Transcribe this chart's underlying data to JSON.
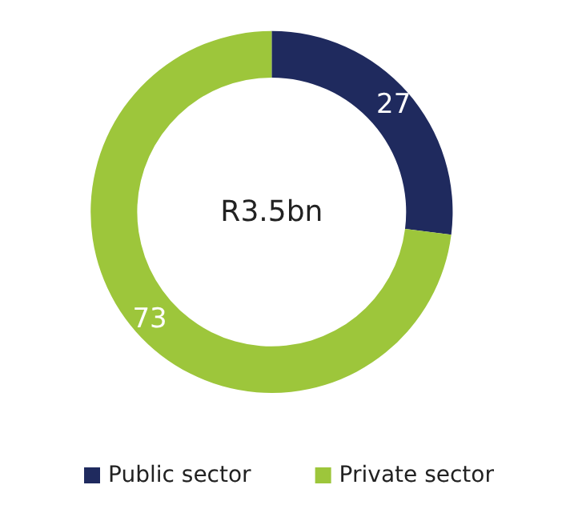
{
  "chart_data": {
    "type": "donut",
    "categories": [
      "Public sector",
      "Private sector"
    ],
    "values": [
      27,
      73
    ],
    "colors": [
      "#1f2a5e",
      "#9dc63b"
    ],
    "data_labels": true,
    "legend": "bottom",
    "annotations": [
      "R3.5bn"
    ]
  }
}
